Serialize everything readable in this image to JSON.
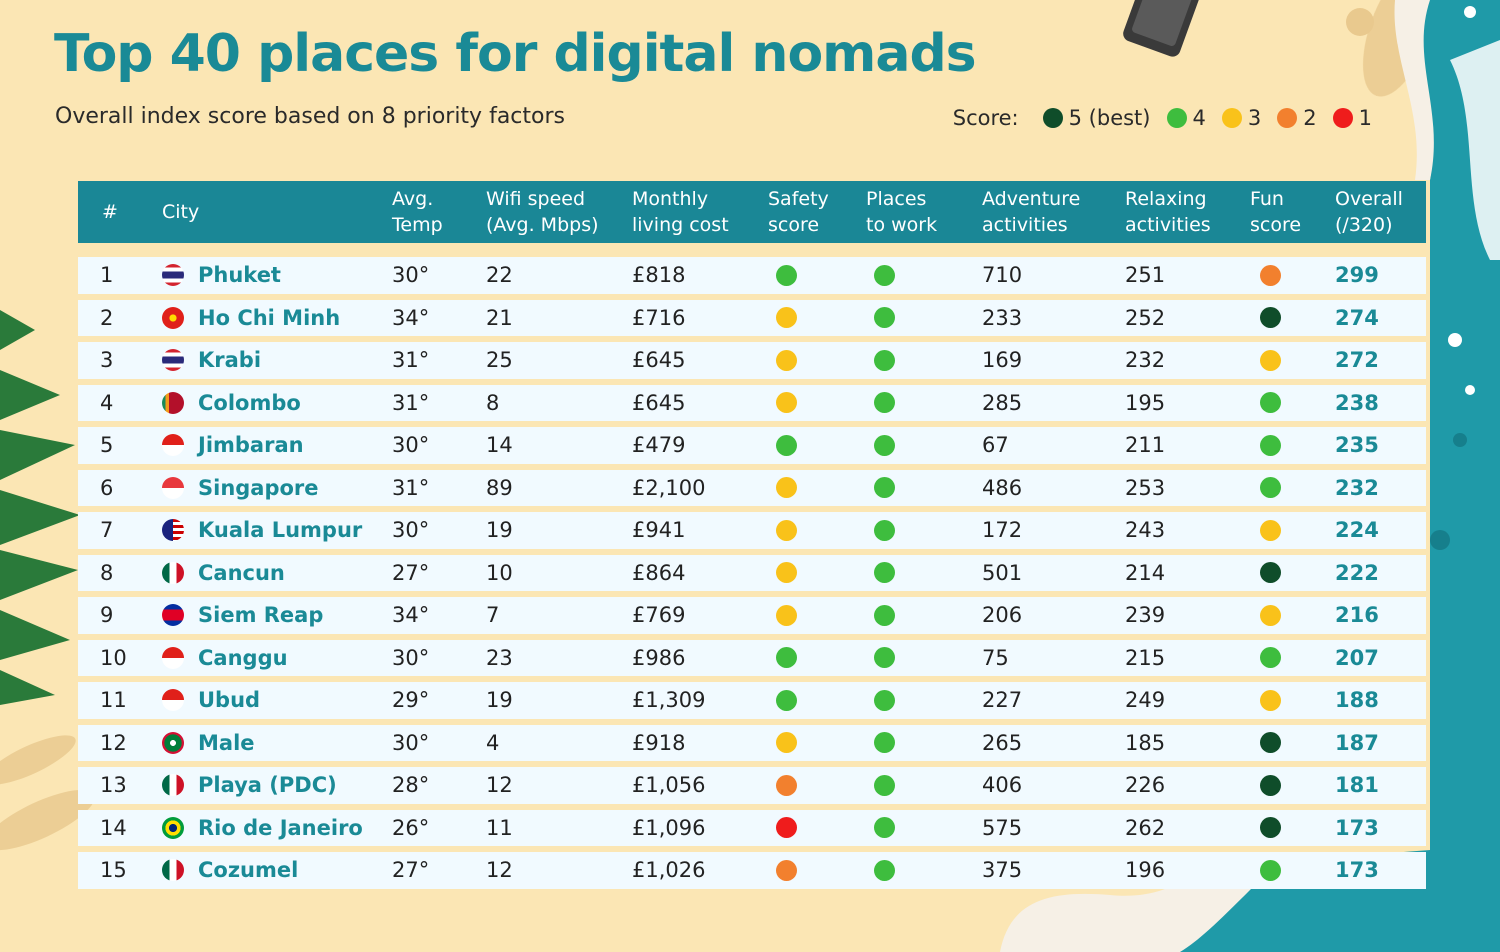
{
  "title": "Top 40 places for digital nomads",
  "subtitle": "Overall index score based on 8 priority factors",
  "legend": {
    "label": "Score:",
    "items": [
      {
        "label": "5 (best)",
        "score": 5
      },
      {
        "label": "4",
        "score": 4
      },
      {
        "label": "3",
        "score": 3
      },
      {
        "label": "2",
        "score": 2
      },
      {
        "label": "1",
        "score": 1
      }
    ]
  },
  "score_colors": {
    "5": "#0f4d2a",
    "4": "#3ebd3e",
    "3": "#f9c21a",
    "2": "#f2802e",
    "1": "#ef1c1c"
  },
  "colors": {
    "accent": "#1a8a96",
    "header_bg": "#1a8796",
    "row_bg": "#f1faff",
    "background": "#fbe6b4"
  },
  "chart_data": {
    "type": "table",
    "columns": [
      "#",
      "City",
      "Avg.\nTemp",
      "Wifi speed\n(Avg. Mbps)",
      "Monthly\nliving cost",
      "Safety\nscore",
      "Places\nto work",
      "Adventure\nactivities",
      "Relaxing\nactivities",
      "Fun\nscore",
      "Overall\n(/320)"
    ],
    "rows": [
      {
        "rank": "1",
        "city": "Phuket",
        "flag": "flag-thailand-icon",
        "temp": "30°",
        "wifi": "22",
        "cost": "£818",
        "safety": 4,
        "work": 4,
        "adventure": "710",
        "relaxing": "251",
        "fun": 2,
        "overall": "299"
      },
      {
        "rank": "2",
        "city": "Ho Chi Minh",
        "flag": "flag-vietnam-icon",
        "temp": "34°",
        "wifi": "21",
        "cost": "£716",
        "safety": 3,
        "work": 4,
        "adventure": "233",
        "relaxing": "252",
        "fun": 5,
        "overall": "274"
      },
      {
        "rank": "3",
        "city": "Krabi",
        "flag": "flag-thailand-icon",
        "temp": "31°",
        "wifi": "25",
        "cost": "£645",
        "safety": 3,
        "work": 4,
        "adventure": "169",
        "relaxing": "232",
        "fun": 3,
        "overall": "272"
      },
      {
        "rank": "4",
        "city": "Colombo",
        "flag": "flag-sri-lanka-icon",
        "temp": "31°",
        "wifi": "8",
        "cost": "£645",
        "safety": 3,
        "work": 4,
        "adventure": "285",
        "relaxing": "195",
        "fun": 4,
        "overall": "238"
      },
      {
        "rank": "5",
        "city": "Jimbaran",
        "flag": "flag-indonesia-icon",
        "temp": "30°",
        "wifi": "14",
        "cost": "£479",
        "safety": 4,
        "work": 4,
        "adventure": "67",
        "relaxing": "211",
        "fun": 4,
        "overall": "235"
      },
      {
        "rank": "6",
        "city": "Singapore",
        "flag": "flag-singapore-icon",
        "temp": "31°",
        "wifi": "89",
        "cost": "£2,100",
        "safety": 3,
        "work": 4,
        "adventure": "486",
        "relaxing": "253",
        "fun": 4,
        "overall": "232"
      },
      {
        "rank": "7",
        "city": "Kuala Lumpur",
        "flag": "flag-malaysia-icon",
        "temp": "30°",
        "wifi": "19",
        "cost": "£941",
        "safety": 3,
        "work": 4,
        "adventure": "172",
        "relaxing": "243",
        "fun": 3,
        "overall": "224"
      },
      {
        "rank": "8",
        "city": "Cancun",
        "flag": "flag-mexico-icon",
        "temp": "27°",
        "wifi": "10",
        "cost": "£864",
        "safety": 3,
        "work": 4,
        "adventure": "501",
        "relaxing": "214",
        "fun": 5,
        "overall": "222"
      },
      {
        "rank": "9",
        "city": "Siem Reap",
        "flag": "flag-cambodia-icon",
        "temp": "34°",
        "wifi": "7",
        "cost": "£769",
        "safety": 3,
        "work": 4,
        "adventure": "206",
        "relaxing": "239",
        "fun": 3,
        "overall": "216"
      },
      {
        "rank": "10",
        "city": "Canggu",
        "flag": "flag-indonesia-icon",
        "temp": "30°",
        "wifi": "23",
        "cost": "£986",
        "safety": 4,
        "work": 4,
        "adventure": "75",
        "relaxing": "215",
        "fun": 4,
        "overall": "207"
      },
      {
        "rank": "11",
        "city": "Ubud",
        "flag": "flag-indonesia-icon",
        "temp": "29°",
        "wifi": "19",
        "cost": "£1,309",
        "safety": 4,
        "work": 4,
        "adventure": "227",
        "relaxing": "249",
        "fun": 3,
        "overall": "188"
      },
      {
        "rank": "12",
        "city": "Male",
        "flag": "flag-maldives-icon",
        "temp": "30°",
        "wifi": "4",
        "cost": "£918",
        "safety": 3,
        "work": 4,
        "adventure": "265",
        "relaxing": "185",
        "fun": 5,
        "overall": "187"
      },
      {
        "rank": "13",
        "city": "Playa (PDC)",
        "flag": "flag-mexico-icon",
        "temp": "28°",
        "wifi": "12",
        "cost": "£1,056",
        "safety": 2,
        "work": 4,
        "adventure": "406",
        "relaxing": "226",
        "fun": 5,
        "overall": "181"
      },
      {
        "rank": "14",
        "city": "Rio de Janeiro",
        "flag": "flag-brazil-icon",
        "temp": "26°",
        "wifi": "11",
        "cost": "£1,096",
        "safety": 1,
        "work": 4,
        "adventure": "575",
        "relaxing": "262",
        "fun": 5,
        "overall": "173"
      },
      {
        "rank": "15",
        "city": "Cozumel",
        "flag": "flag-mexico-icon",
        "temp": "27°",
        "wifi": "12",
        "cost": "£1,026",
        "safety": 2,
        "work": 4,
        "adventure": "375",
        "relaxing": "196",
        "fun": 4,
        "overall": "173"
      }
    ]
  }
}
